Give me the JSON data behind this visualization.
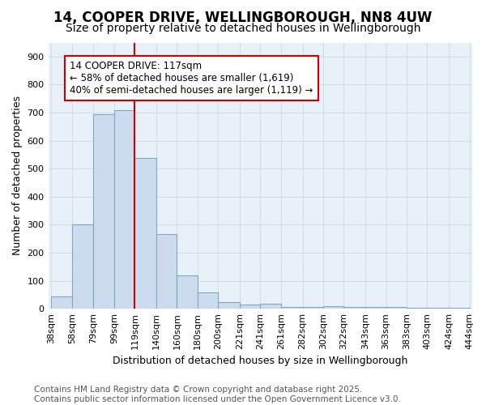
{
  "title_line1": "14, COOPER DRIVE, WELLINGBOROUGH, NN8 4UW",
  "title_line2": "Size of property relative to detached houses in Wellingborough",
  "xlabel": "Distribution of detached houses by size in Wellingborough",
  "ylabel": "Number of detached properties",
  "annotation_line1": "14 COOPER DRIVE: 117sqm",
  "annotation_line2": "← 58% of detached houses are smaller (1,619)",
  "annotation_line3": "40% of semi-detached houses are larger (1,119) →",
  "footer_line1": "Contains HM Land Registry data © Crown copyright and database right 2025.",
  "footer_line2": "Contains public sector information licensed under the Open Government Licence v3.0.",
  "bar_edges": [
    38,
    58,
    79,
    99,
    119,
    140,
    160,
    180,
    200,
    221,
    241,
    261,
    282,
    302,
    322,
    343,
    363,
    383,
    403,
    424,
    444
  ],
  "bar_heights": [
    45,
    300,
    693,
    710,
    538,
    265,
    120,
    57,
    25,
    15,
    17,
    7,
    5,
    8,
    7,
    5,
    5,
    3,
    2,
    3
  ],
  "bar_color": "#ccdcee",
  "bar_edge_color": "#7aaac8",
  "property_line_x": 119,
  "ylim": [
    0,
    950
  ],
  "yticks": [
    0,
    100,
    200,
    300,
    400,
    500,
    600,
    700,
    800,
    900
  ],
  "fig_bg_color": "#ffffff",
  "plot_bg_color": "#e8f0f8",
  "grid_color": "#d0d8e0",
  "annotation_box_facecolor": "#ffffff",
  "annotation_box_edgecolor": "#cc0000",
  "red_line_color": "#cc0000",
  "title_fontsize": 12,
  "subtitle_fontsize": 10,
  "axis_label_fontsize": 9,
  "tick_fontsize": 8,
  "annotation_fontsize": 8.5,
  "footer_fontsize": 7.5
}
